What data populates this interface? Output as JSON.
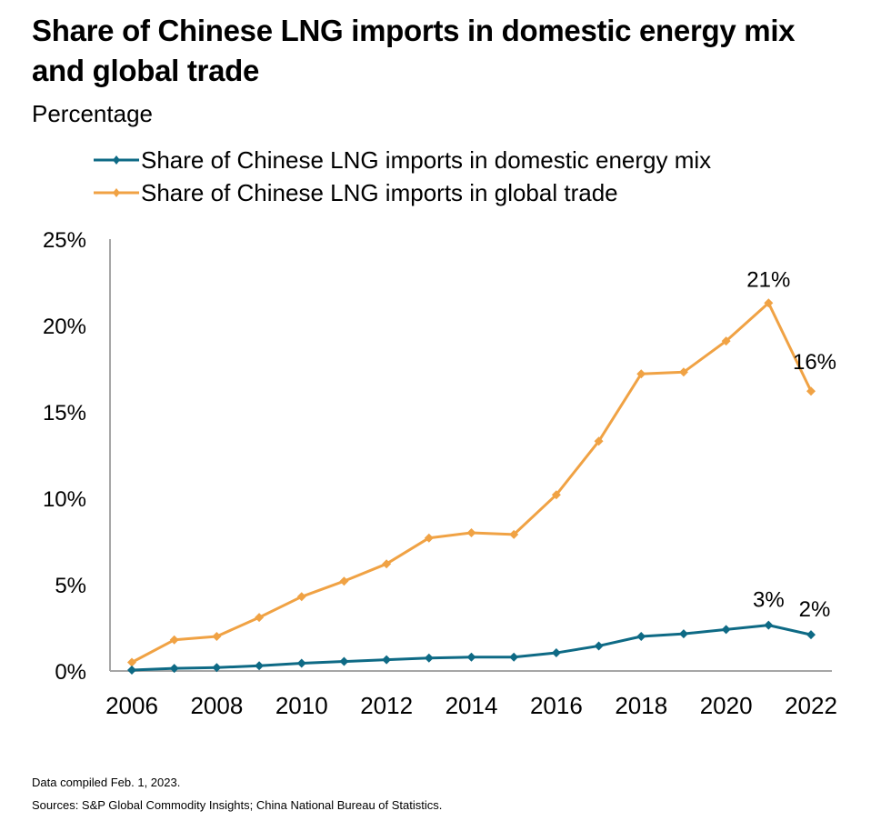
{
  "header": {
    "title": "Share of Chinese LNG imports in domestic energy mix and global trade",
    "subtitle": "Percentage"
  },
  "footer": {
    "note": "Data compiled Feb. 1, 2023.",
    "sources": "Sources: S&P Global Commodity Insights; China National Bureau of Statistics."
  },
  "chart_data": {
    "type": "line",
    "title": "Share of Chinese LNG imports in domestic energy mix and global trade",
    "subtitle": "Percentage",
    "xlabel": "",
    "ylabel": "",
    "x": [
      2006,
      2007,
      2008,
      2009,
      2010,
      2011,
      2012,
      2013,
      2014,
      2015,
      2016,
      2017,
      2018,
      2019,
      2020,
      2021,
      2022
    ],
    "x_tick_labels": [
      "2006",
      "2008",
      "2010",
      "2012",
      "2014",
      "2016",
      "2018",
      "2020",
      "2022"
    ],
    "x_ticks": [
      2006,
      2008,
      2010,
      2012,
      2014,
      2016,
      2018,
      2020,
      2022
    ],
    "y_ticks": [
      0,
      5,
      10,
      15,
      20,
      25
    ],
    "y_tick_labels": [
      "0%",
      "5%",
      "10%",
      "15%",
      "20%",
      "25%"
    ],
    "ylim": [
      0,
      25
    ],
    "grid": false,
    "legend_position": "top-left",
    "series": [
      {
        "name": "Share of Chinese LNG imports in domestic energy mix",
        "color": "#0e6a85",
        "marker": "diamond",
        "values": [
          0.05,
          0.15,
          0.2,
          0.3,
          0.45,
          0.55,
          0.65,
          0.75,
          0.8,
          0.8,
          1.05,
          1.45,
          2.0,
          2.15,
          2.4,
          2.65,
          2.1
        ],
        "annotations": [
          {
            "x": 2021,
            "text": "3%"
          },
          {
            "x": 2022,
            "text": "2%"
          }
        ]
      },
      {
        "name": "Share of Chinese LNG imports in global trade",
        "color": "#f0a244",
        "marker": "diamond",
        "values": [
          0.5,
          1.8,
          2.0,
          3.1,
          4.3,
          5.2,
          6.2,
          7.7,
          8.0,
          7.9,
          10.2,
          13.3,
          17.2,
          17.3,
          19.1,
          21.3,
          16.2
        ],
        "annotations": [
          {
            "x": 2021,
            "text": "21%"
          },
          {
            "x": 2022,
            "text": "16%"
          }
        ]
      }
    ]
  }
}
